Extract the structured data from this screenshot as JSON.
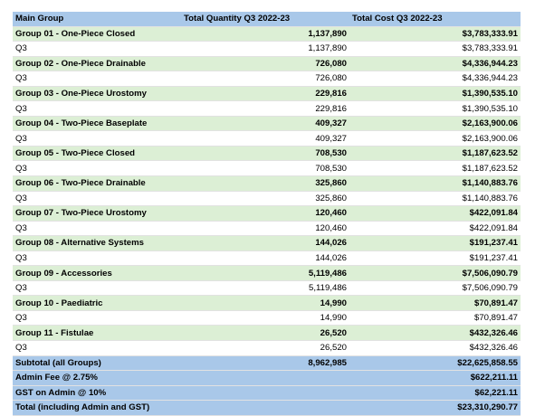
{
  "headers": {
    "main_group": "Main Group",
    "quantity": "Total Quantity Q3 2022-23",
    "cost": "Total Cost Q3 2022-23"
  },
  "groups": [
    {
      "name": "Group 01 - One-Piece Closed",
      "quantity": "1,137,890",
      "cost": "$3,783,333.91",
      "period": "Q3",
      "period_quantity": "1,137,890",
      "period_cost": "$3,783,333.91"
    },
    {
      "name": "Group 02 - One-Piece Drainable",
      "quantity": "726,080",
      "cost": "$4,336,944.23",
      "period": "Q3",
      "period_quantity": "726,080",
      "period_cost": "$4,336,944.23"
    },
    {
      "name": "Group 03 - One-Piece Urostomy",
      "quantity": "229,816",
      "cost": "$1,390,535.10",
      "period": "Q3",
      "period_quantity": "229,816",
      "period_cost": "$1,390,535.10"
    },
    {
      "name": "Group 04 - Two-Piece Baseplate",
      "quantity": "409,327",
      "cost": "$2,163,900.06",
      "period": "Q3",
      "period_quantity": "409,327",
      "period_cost": "$2,163,900.06"
    },
    {
      "name": "Group 05 - Two-Piece Closed",
      "quantity": "708,530",
      "cost": "$1,187,623.52",
      "period": "Q3",
      "period_quantity": "708,530",
      "period_cost": "$1,187,623.52"
    },
    {
      "name": "Group 06 - Two-Piece Drainable",
      "quantity": "325,860",
      "cost": "$1,140,883.76",
      "period": "Q3",
      "period_quantity": "325,860",
      "period_cost": "$1,140,883.76"
    },
    {
      "name": "Group 07 - Two-Piece Urostomy",
      "quantity": "120,460",
      "cost": "$422,091.84",
      "period": "Q3",
      "period_quantity": "120,460",
      "period_cost": "$422,091.84"
    },
    {
      "name": "Group 08 - Alternative Systems",
      "quantity": "144,026",
      "cost": "$191,237.41",
      "period": "Q3",
      "period_quantity": "144,026",
      "period_cost": "$191,237.41"
    },
    {
      "name": "Group 09 - Accessories",
      "quantity": "5,119,486",
      "cost": "$7,506,090.79",
      "period": "Q3",
      "period_quantity": "5,119,486",
      "period_cost": "$7,506,090.79"
    },
    {
      "name": "Group 10 - Paediatric",
      "quantity": "14,990",
      "cost": "$70,891.47",
      "period": "Q3",
      "period_quantity": "14,990",
      "period_cost": "$70,891.47"
    },
    {
      "name": "Group 11 - Fistulae",
      "quantity": "26,520",
      "cost": "$432,326.46",
      "period": "Q3",
      "period_quantity": "26,520",
      "period_cost": "$432,326.46"
    }
  ],
  "totals": [
    {
      "label": "Subtotal (all Groups)",
      "quantity": "8,962,985",
      "cost": "$22,625,858.55"
    },
    {
      "label": "Admin Fee @ 2.75%",
      "quantity": "",
      "cost": "$622,211.11"
    },
    {
      "label": "GST on Admin @ 10%",
      "quantity": "",
      "cost": "$62,221.11"
    },
    {
      "label": "Total (including Admin and GST)",
      "quantity": "",
      "cost": "$23,310,290.77"
    }
  ],
  "colors": {
    "header_fill": "#a9c8e9",
    "group_fill": "#dcefd5",
    "row_fill": "#ffffff"
  }
}
